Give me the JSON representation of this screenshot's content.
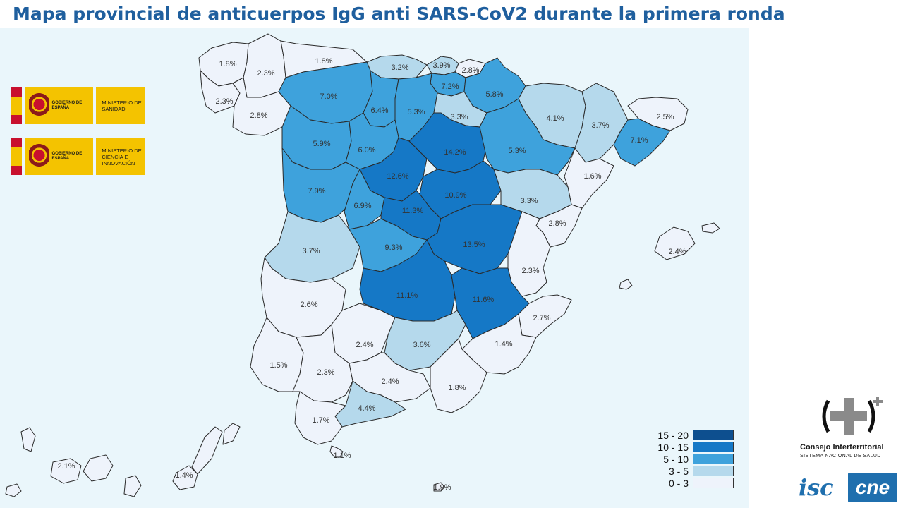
{
  "title": "Mapa provincial de anticuerpos IgG anti SARS-CoV2 durante la primera ronda",
  "colors": {
    "range_15_20": "#0d4f8f",
    "range_10_15": "#1578c6",
    "range_5_10": "#3ea2dc",
    "range_3_5": "#b5d9ec",
    "range_0_3": "#eef3fb",
    "title": "#1f5f9e",
    "sea": "#eaf6fb"
  },
  "logos": {
    "gov1": {
      "gov_text": "GOBIERNO DE ESPAÑA",
      "ministry_text": "MINISTERIO DE SANIDAD"
    },
    "gov2": {
      "gov_text": "GOBIERNO DE ESPAÑA",
      "ministry_text": "MINISTERIO DE CIENCIA E INNOVACIÓN"
    },
    "ci_line1": "Consejo Interterritorial",
    "ci_line2": "SISTEMA NACIONAL DE SALUD",
    "isc_text": "isc",
    "cne_text": "cne"
  },
  "legend": [
    {
      "label": "15 - 20",
      "color": "#0d4f8f"
    },
    {
      "label": "10 - 15",
      "color": "#1578c6"
    },
    {
      "label": "5 - 10",
      "color": "#3ea2dc"
    },
    {
      "label": "3 - 5",
      "color": "#b5d9ec"
    },
    {
      "label": "0 - 3",
      "color": "#eef3fb"
    }
  ],
  "provinces": [
    {
      "label": "1.8%",
      "value": 1.8
    },
    {
      "label": "2.3%",
      "value": 2.3
    },
    {
      "label": "2.3%",
      "value": 2.3
    },
    {
      "label": "2.8%",
      "value": 2.8
    },
    {
      "label": "1.8%",
      "value": 1.8
    },
    {
      "label": "3.2%",
      "value": 3.2
    },
    {
      "label": "3.9%",
      "value": 3.9
    },
    {
      "label": "2.8%",
      "value": 2.8
    },
    {
      "label": "7.2%",
      "value": 7.2
    },
    {
      "label": "5.8%",
      "value": 5.8
    },
    {
      "label": "7.0%",
      "value": 7.0
    },
    {
      "label": "6.4%",
      "value": 6.4
    },
    {
      "label": "5.3%",
      "value": 5.3
    },
    {
      "label": "3.3%",
      "value": 3.3
    },
    {
      "label": "4.1%",
      "value": 4.1
    },
    {
      "label": "3.7%",
      "value": 3.7
    },
    {
      "label": "2.5%",
      "value": 2.5
    },
    {
      "label": "7.1%",
      "value": 7.1
    },
    {
      "label": "5.9%",
      "value": 5.9
    },
    {
      "label": "6.0%",
      "value": 6.0
    },
    {
      "label": "14.2%",
      "value": 14.2
    },
    {
      "label": "5.3%",
      "value": 5.3
    },
    {
      "label": "1.6%",
      "value": 1.6
    },
    {
      "label": "12.6%",
      "value": 12.6
    },
    {
      "label": "7.9%",
      "value": 7.9
    },
    {
      "label": "6.9%",
      "value": 6.9
    },
    {
      "label": "10.9%",
      "value": 10.9
    },
    {
      "label": "11.3%",
      "value": 11.3
    },
    {
      "label": "3.3%",
      "value": 3.3
    },
    {
      "label": "2.8%",
      "value": 2.8
    },
    {
      "label": "3.7%",
      "value": 3.7
    },
    {
      "label": "9.3%",
      "value": 9.3
    },
    {
      "label": "13.5%",
      "value": 13.5
    },
    {
      "label": "2.3%",
      "value": 2.3
    },
    {
      "label": "2.4%",
      "value": 2.4
    },
    {
      "label": "2.6%",
      "value": 2.6
    },
    {
      "label": "11.1%",
      "value": 11.1
    },
    {
      "label": "11.6%",
      "value": 11.6
    },
    {
      "label": "2.7%",
      "value": 2.7
    },
    {
      "label": "2.4%",
      "value": 2.4
    },
    {
      "label": "3.6%",
      "value": 3.6
    },
    {
      "label": "1.4%",
      "value": 1.4
    },
    {
      "label": "1.5%",
      "value": 1.5
    },
    {
      "label": "2.3%",
      "value": 2.3
    },
    {
      "label": "2.4%",
      "value": 2.4
    },
    {
      "label": "1.8%",
      "value": 1.8
    },
    {
      "label": "4.4%",
      "value": 4.4
    },
    {
      "label": "1.7%",
      "value": 1.7
    },
    {
      "label": "1.1%",
      "value": 1.1
    },
    {
      "label": "2.1%",
      "value": 2.1
    },
    {
      "label": "1.4%",
      "value": 1.4
    },
    {
      "label": "1.9%",
      "value": 1.9
    }
  ]
}
